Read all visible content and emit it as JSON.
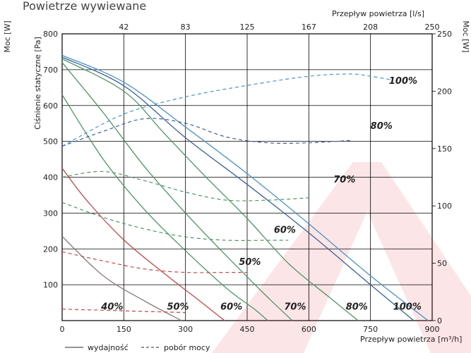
{
  "chart_data": {
    "type": "line",
    "title": "Powietrze wywiewane",
    "xlabel": "Przepływ powietrza [m³/h]",
    "x2label": "Przepływ powietrza [l/s]",
    "ylabel": "Ciśnienie statyczne [Pa]",
    "y2label_left": "Moc [W]",
    "y2label_right": "Moc [W]",
    "xlim": [
      0,
      900
    ],
    "ylim": [
      0,
      800
    ],
    "power_lim": [
      0,
      250
    ],
    "grid": true,
    "x_ticks": [
      "0",
      "150",
      "300",
      "450",
      "600",
      "750",
      "900"
    ],
    "x2_ticks": [
      "42",
      "83",
      "125",
      "167",
      "208",
      "250"
    ],
    "y_ticks": [
      "100",
      "200",
      "300",
      "400",
      "500",
      "600",
      "700",
      "800"
    ],
    "power_ticks": [
      "0",
      "50",
      "100",
      "150",
      "200",
      "250"
    ],
    "legend": {
      "placement": "bottom-left",
      "solid": "wydajność",
      "dashed": "pobór mocy"
    },
    "pressure_series": [
      {
        "label": "40%",
        "color": "#8a7a7a",
        "points": [
          [
            0,
            235
          ],
          [
            100,
            125
          ],
          [
            200,
            55
          ],
          [
            290,
            0
          ]
        ]
      },
      {
        "label": "50%",
        "color": "#c0484c",
        "points": [
          [
            0,
            425
          ],
          [
            60,
            335
          ],
          [
            150,
            225
          ],
          [
            250,
            130
          ],
          [
            340,
            50
          ],
          [
            395,
            0
          ]
        ]
      },
      {
        "label": "60%",
        "color": "#4f9563",
        "points": [
          [
            0,
            630
          ],
          [
            100,
            450
          ],
          [
            200,
            310
          ],
          [
            300,
            195
          ],
          [
            400,
            90
          ],
          [
            470,
            30
          ],
          [
            500,
            0
          ]
        ]
      },
      {
        "label": "70%",
        "color": "#4f9563",
        "points": [
          [
            0,
            720
          ],
          [
            100,
            580
          ],
          [
            200,
            430
          ],
          [
            300,
            300
          ],
          [
            400,
            180
          ],
          [
            500,
            65
          ],
          [
            560,
            0
          ]
        ]
      },
      {
        "label": "80%",
        "color": "#4f9563",
        "points": [
          [
            0,
            730
          ],
          [
            150,
            640
          ],
          [
            250,
            520
          ],
          [
            350,
            400
          ],
          [
            450,
            285
          ],
          [
            550,
            160
          ],
          [
            650,
            65
          ],
          [
            720,
            0
          ]
        ]
      },
      {
        "label": "100%",
        "color": "#3e5f98",
        "points": [
          [
            0,
            735
          ],
          [
            150,
            655
          ],
          [
            300,
            510
          ],
          [
            450,
            380
          ],
          [
            600,
            245
          ],
          [
            750,
            100
          ],
          [
            855,
            0
          ]
        ]
      },
      {
        "label": "",
        "color": "#4a93c4",
        "points": [
          [
            0,
            740
          ],
          [
            150,
            665
          ],
          [
            300,
            540
          ],
          [
            450,
            410
          ],
          [
            600,
            270
          ],
          [
            750,
            125
          ],
          [
            890,
            0
          ]
        ]
      }
    ],
    "power_series": [
      {
        "label": "100%",
        "color": "#4a93c4",
        "points": [
          [
            0,
            152
          ],
          [
            150,
            180
          ],
          [
            300,
            195
          ],
          [
            450,
            205
          ],
          [
            600,
            213
          ],
          [
            700,
            215
          ],
          [
            750,
            213
          ],
          [
            800,
            210
          ]
        ]
      },
      {
        "label": "80%",
        "color": "#3e5f98",
        "points": [
          [
            0,
            152
          ],
          [
            100,
            165
          ],
          [
            200,
            176
          ],
          [
            300,
            172
          ],
          [
            400,
            160
          ],
          [
            500,
            155
          ],
          [
            600,
            155
          ],
          [
            700,
            157
          ]
        ]
      },
      {
        "label": "70%",
        "color": "#4f9563",
        "points": [
          [
            0,
            125
          ],
          [
            100,
            130
          ],
          [
            200,
            122
          ],
          [
            300,
            112
          ],
          [
            400,
            105
          ],
          [
            500,
            105
          ],
          [
            600,
            107
          ]
        ]
      },
      {
        "label": "60%",
        "color": "#4f9563",
        "points": [
          [
            0,
            103
          ],
          [
            100,
            90
          ],
          [
            200,
            80
          ],
          [
            300,
            73
          ],
          [
            400,
            70
          ],
          [
            500,
            70
          ],
          [
            550,
            70
          ]
        ]
      },
      {
        "label": "50%",
        "color": "#c0484c",
        "points": [
          [
            0,
            60
          ],
          [
            100,
            52
          ],
          [
            200,
            45
          ],
          [
            300,
            42
          ],
          [
            400,
            42
          ],
          [
            450,
            42
          ]
        ]
      },
      {
        "label": "40%",
        "color": "#c0484c",
        "points": [
          [
            0,
            10
          ],
          [
            100,
            9
          ],
          [
            200,
            8
          ],
          [
            300,
            7
          ]
        ]
      }
    ],
    "labels": [
      {
        "text": "40%",
        "x": 95,
        "y": 30
      },
      {
        "text": "50%",
        "x": 255,
        "y": 30
      },
      {
        "text": "60%",
        "x": 385,
        "y": 30
      },
      {
        "text": "70%",
        "x": 540,
        "y": 30
      },
      {
        "text": "80%",
        "x": 690,
        "y": 30
      },
      {
        "text": "100%",
        "x": 805,
        "y": 30
      },
      {
        "text": "100%",
        "x": 795,
        "y": 660
      },
      {
        "text": "80%",
        "x": 750,
        "y": 535
      },
      {
        "text": "70%",
        "x": 660,
        "y": 385
      },
      {
        "text": "60%",
        "x": 515,
        "y": 245
      },
      {
        "text": "50%",
        "x": 430,
        "y": 155
      }
    ]
  }
}
